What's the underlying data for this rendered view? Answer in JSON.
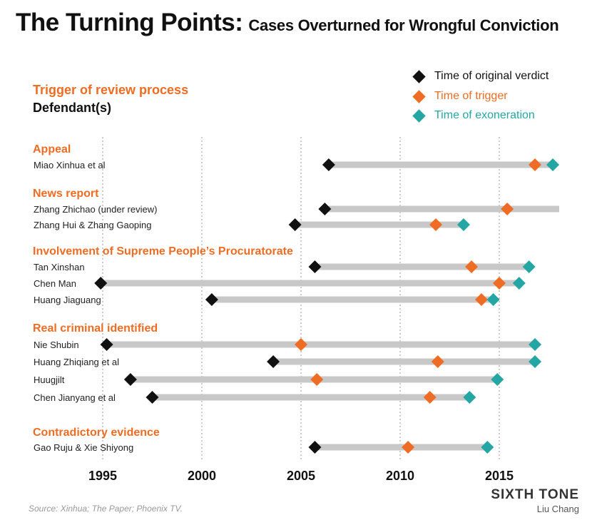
{
  "header": {
    "title": "The Turning Points:",
    "subtitle": "Cases Overturned for Wrongful Conviction",
    "trigger_heading": "Trigger of review process",
    "defendant_heading": "Defendant(s)"
  },
  "legend": {
    "items": [
      {
        "label": "Time of original verdict",
        "color": "#111111"
      },
      {
        "label": "Time of trigger",
        "color": "#ee6c23"
      },
      {
        "label": "Time of exoneration",
        "color": "#24a6a4"
      }
    ]
  },
  "colors": {
    "verdict": "#111111",
    "trigger": "#ee6c23",
    "exoneration": "#24a6a4",
    "bar": "#c8c8c8",
    "category": "#ee6c23"
  },
  "chart_data": {
    "type": "scatter",
    "xlim": [
      1995,
      2015
    ],
    "x_ticks": [
      1995,
      2000,
      2005,
      2010,
      2015
    ],
    "grid": "vertical-dotted",
    "groups": [
      {
        "category": "Appeal",
        "cases": [
          {
            "defendant": "Miao Xinhua et al",
            "verdict": 2006.4,
            "trigger": 2016.8,
            "exoneration": 2017.7
          }
        ]
      },
      {
        "category": "News report",
        "cases": [
          {
            "defendant": "Zhang Zhichao (under review)",
            "verdict": 2006.2,
            "trigger": 2015.4,
            "exoneration": null,
            "ongoing": true
          },
          {
            "defendant": "Zhang Hui & Zhang Gaoping",
            "verdict": 2004.7,
            "trigger": 2011.8,
            "exoneration": 2013.2
          }
        ]
      },
      {
        "category": "Involvement of Supreme People’s Procuratorate",
        "cases": [
          {
            "defendant": "Tan Xinshan",
            "verdict": 2005.7,
            "trigger": 2013.6,
            "exoneration": 2016.5
          },
          {
            "defendant": "Chen Man",
            "verdict": 1994.9,
            "trigger": 2015.0,
            "exoneration": 2016.0
          },
          {
            "defendant": "Huang Jiaguang",
            "verdict": 2000.5,
            "trigger": 2014.1,
            "exoneration": 2014.7
          }
        ]
      },
      {
        "category": "Real criminal identified",
        "cases": [
          {
            "defendant": "Nie Shubin",
            "verdict": 1995.2,
            "trigger": 2005.0,
            "exoneration": 2016.8
          },
          {
            "defendant": "Huang Zhiqiang et al",
            "verdict": 2003.6,
            "trigger": 2011.9,
            "exoneration": 2016.8
          },
          {
            "defendant": "Huugjilt",
            "verdict": 1996.4,
            "trigger": 2005.8,
            "exoneration": 2014.9
          },
          {
            "defendant": "Chen Jianyang et al",
            "verdict": 1997.5,
            "trigger": 2011.5,
            "exoneration": 2013.5
          }
        ]
      },
      {
        "category": "Contradictory evidence",
        "cases": [
          {
            "defendant": "Gao Ruju & Xie Shiyong",
            "verdict": 2005.7,
            "trigger": 2010.4,
            "exoneration": 2014.4
          }
        ]
      }
    ]
  },
  "footer": {
    "source": "Source: Xinhua; The Paper; Phoenix TV.",
    "brand": "SIXTH TONE",
    "author": "Liu Chang"
  }
}
